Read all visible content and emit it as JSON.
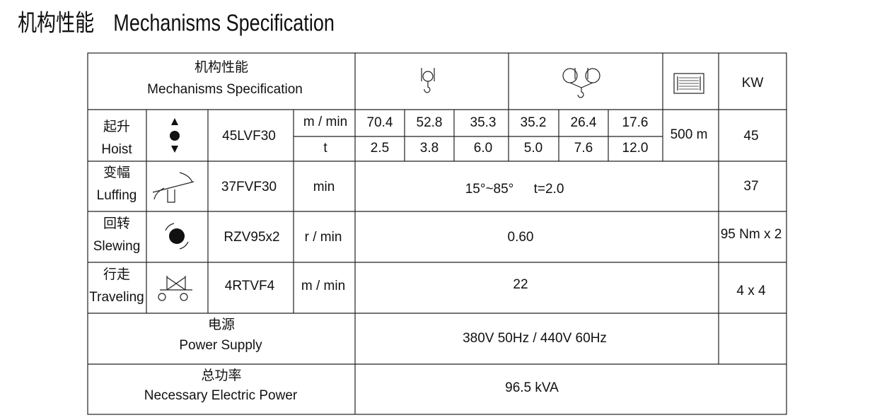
{
  "title": {
    "zh": "机构性能",
    "en": "Mechanisms Specification"
  },
  "table": {
    "header": {
      "zh": "机构性能",
      "en": "Mechanisms Specification",
      "power_unit": "KW"
    },
    "hoist": {
      "zh": "起升",
      "en": "Hoist",
      "model": "45LVF30",
      "units": [
        "m / min",
        "t"
      ],
      "speeds": [
        "70.4",
        "52.8",
        "35.3",
        "35.2",
        "26.4",
        "17.6"
      ],
      "loads": [
        "2.5",
        "3.8",
        "6.0",
        "5.0",
        "7.6",
        "12.0"
      ],
      "rope": "500 m",
      "power": "45"
    },
    "luffing": {
      "zh": "变幅",
      "en": "Luffing",
      "model": "37FVF30",
      "unit": "min",
      "angle": "15°~85°",
      "time": "t=2.0",
      "power": "37"
    },
    "slewing": {
      "zh": "回转",
      "en": "Slewing",
      "model": "RZV95x2",
      "unit": "r / min",
      "value": "0.60",
      "power": "95 Nm x 2"
    },
    "traveling": {
      "zh": "行走",
      "en": "Traveling",
      "model": "4RTVF4",
      "unit": "m / min",
      "value": "22",
      "power": "4 x 4"
    },
    "power_supply": {
      "zh": "电源",
      "en": "Power Supply",
      "value": "380V 50Hz / 440V 60Hz"
    },
    "necessary_power": {
      "zh": "总功率",
      "en": "Necessary Electric Power",
      "value": "96.5 kVA"
    }
  }
}
